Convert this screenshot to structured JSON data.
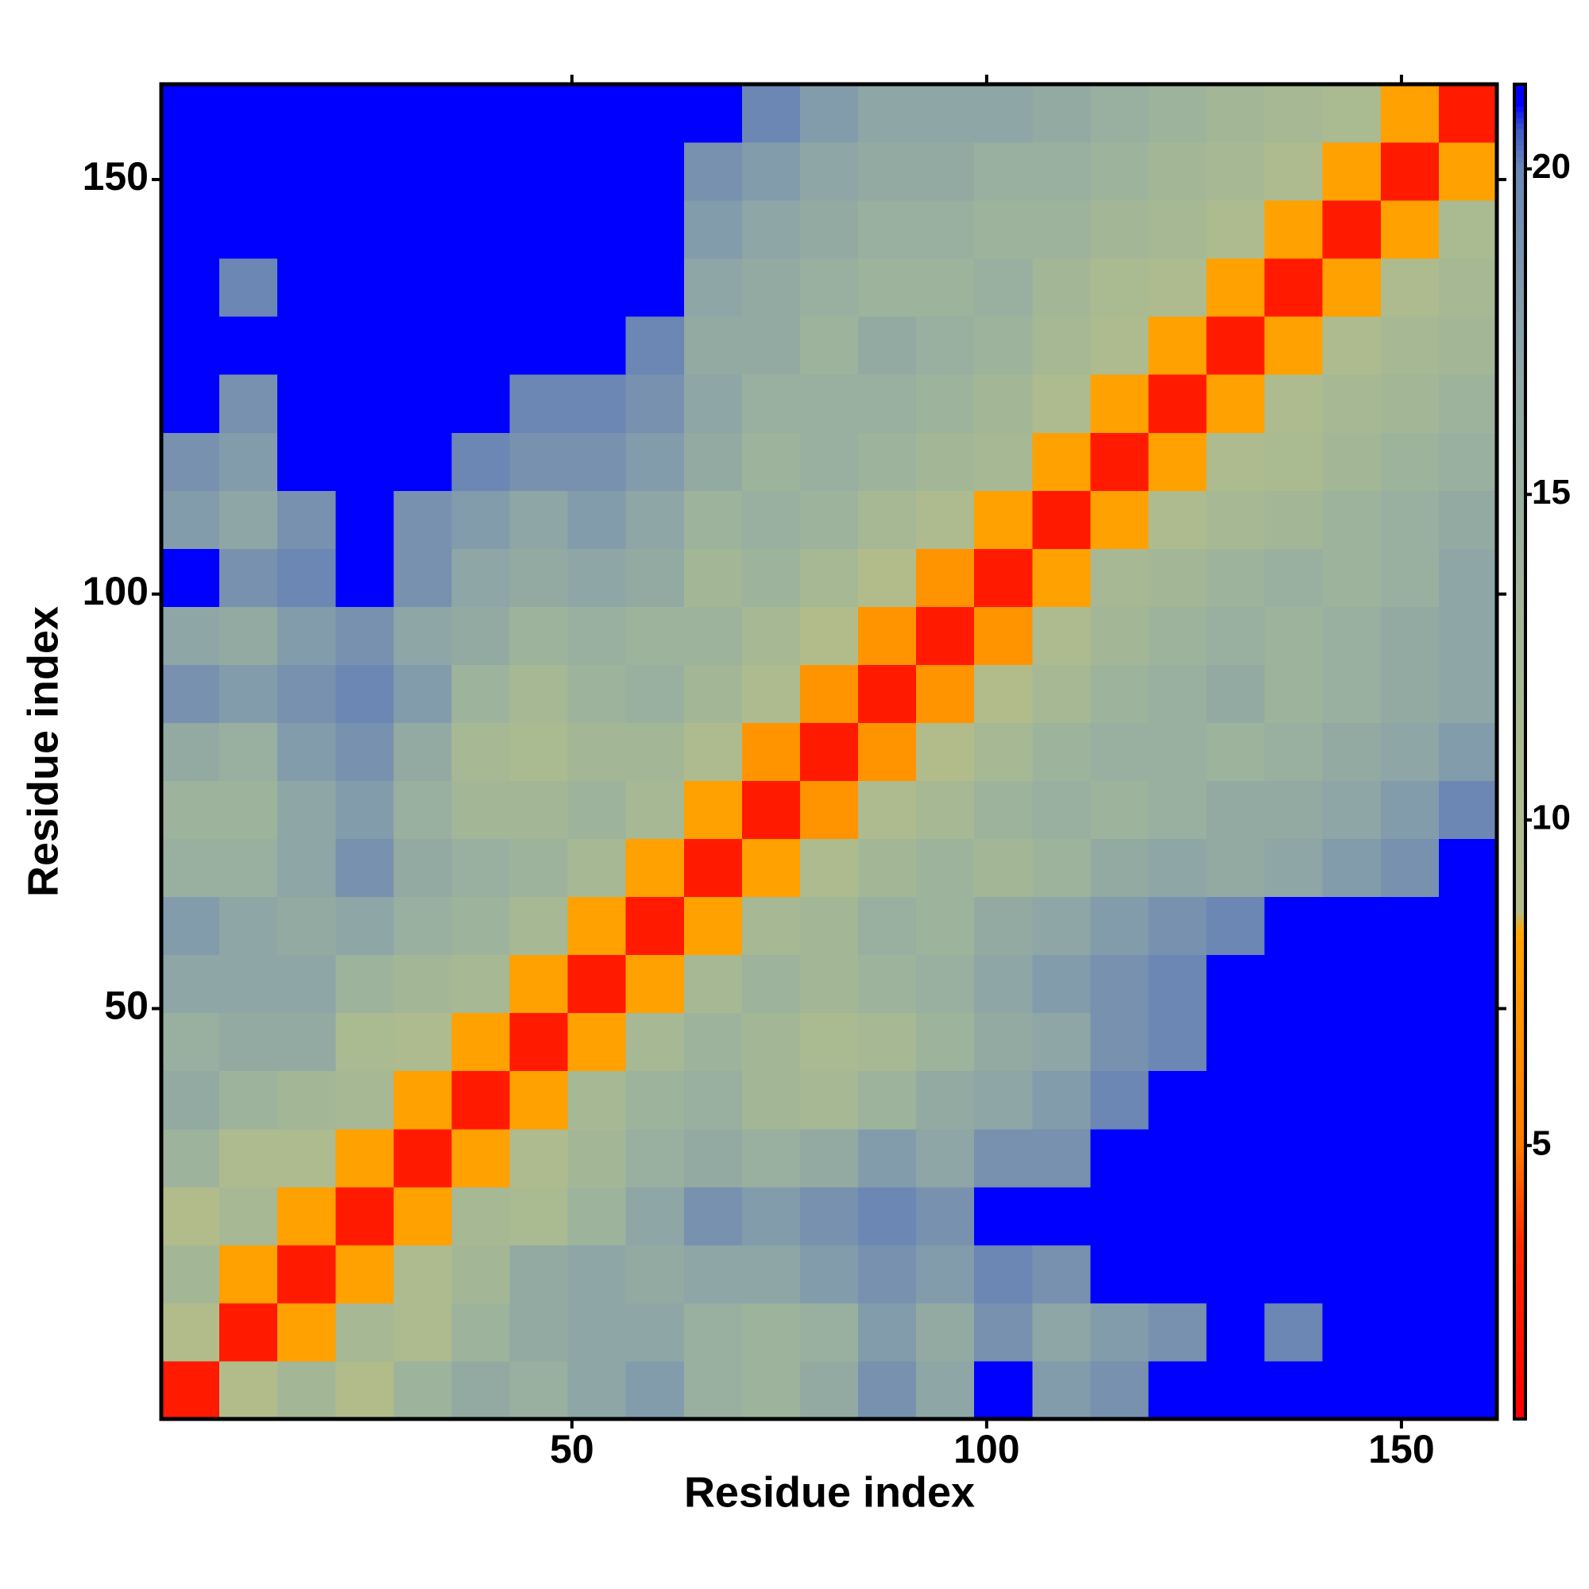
{
  "chart_data": {
    "type": "heatmap",
    "x_label": "Residue index",
    "y_label": "Residue index",
    "bins": [
      0.5,
      7.5,
      14.5,
      21.5,
      28.5,
      35.5,
      42.5,
      49.5,
      56.5,
      63.5,
      70.5,
      77.5,
      84.5,
      91.5,
      98.5,
      105.5,
      112.5,
      119.5,
      126.5,
      133.5,
      140.5,
      147.5,
      154.5,
      161.5
    ],
    "xlim": [
      0.5,
      161.5
    ],
    "ylim": [
      0.5,
      161.5
    ],
    "xticks": [
      50,
      100,
      150
    ],
    "yticks": [
      50,
      100,
      150
    ],
    "zlim": [
      0.8,
      21.3
    ],
    "zticks": [
      5,
      10,
      15,
      20
    ],
    "colorscale": [
      [
        0.8,
        "#ff0000"
      ],
      [
        3.5,
        "#ff2a00"
      ],
      [
        5,
        "#ff7a00"
      ],
      [
        8.3,
        "#ffa500"
      ],
      [
        8.6,
        "#b3bd8a"
      ],
      [
        13,
        "#a3b797"
      ],
      [
        17,
        "#8ea6a6"
      ],
      [
        20,
        "#6c87b4"
      ],
      [
        20.6,
        "#3d5bc8"
      ],
      [
        21,
        "#0000ff"
      ],
      [
        21.3,
        "#0000ff"
      ]
    ],
    "z": [
      [
        2.5,
        9,
        13,
        9,
        14,
        16,
        15,
        17,
        18,
        15,
        14,
        16,
        19,
        17,
        21,
        18,
        19,
        21,
        21,
        21,
        21,
        21,
        21
      ],
      [
        9,
        2.5,
        8,
        12,
        10,
        14,
        16,
        17,
        17,
        15,
        14,
        15,
        18,
        16,
        19,
        17,
        18,
        19,
        21,
        20,
        21,
        21,
        21
      ],
      [
        13,
        8,
        2.5,
        8,
        10,
        13,
        16,
        17,
        16,
        17,
        17,
        18,
        19,
        18,
        20,
        19,
        21,
        21,
        21,
        21,
        21,
        21,
        21
      ],
      [
        9,
        12,
        8,
        2.5,
        8,
        12,
        11,
        14,
        17,
        19,
        18,
        19,
        20,
        19,
        21,
        21,
        21,
        21,
        21,
        21,
        21,
        21,
        21
      ],
      [
        14,
        10,
        10,
        8,
        2.5,
        8,
        10,
        13,
        15,
        16,
        15,
        16,
        18,
        17,
        19,
        19,
        21,
        21,
        21,
        21,
        21,
        21,
        21
      ],
      [
        16,
        14,
        13,
        12,
        8,
        2.5,
        8,
        12,
        14,
        15,
        13,
        12,
        14,
        16,
        17,
        18,
        20,
        21,
        21,
        21,
        21,
        21,
        21
      ],
      [
        15,
        16,
        16,
        11,
        10,
        8,
        2.5,
        8,
        12,
        14,
        13,
        11,
        12,
        14,
        16,
        17,
        19,
        20,
        21,
        21,
        21,
        21,
        21
      ],
      [
        17,
        17,
        17,
        14,
        13,
        12,
        8,
        2.5,
        8,
        12,
        14,
        13,
        14,
        15,
        17,
        18,
        19,
        20,
        21,
        21,
        21,
        21,
        21
      ],
      [
        18,
        17,
        16,
        17,
        15,
        14,
        12,
        8,
        2.5,
        8,
        12,
        13,
        15,
        14,
        16,
        17,
        18,
        19,
        20,
        21,
        21,
        21,
        21
      ],
      [
        15,
        15,
        17,
        19,
        16,
        15,
        14,
        12,
        8,
        2.5,
        8,
        10,
        13,
        14,
        13,
        14,
        16,
        17,
        16,
        17,
        18,
        19,
        21
      ],
      [
        14,
        14,
        17,
        18,
        15,
        13,
        13,
        14,
        12,
        8,
        2.5,
        7,
        10,
        12,
        14,
        15,
        14,
        15,
        16,
        16,
        17,
        18,
        20
      ],
      [
        16,
        15,
        18,
        19,
        16,
        12,
        11,
        13,
        13,
        10,
        7,
        2.5,
        7,
        9,
        12,
        14,
        15,
        15,
        14,
        15,
        16,
        17,
        18
      ],
      [
        19,
        18,
        19,
        20,
        18,
        14,
        12,
        14,
        15,
        13,
        10,
        7,
        2.5,
        7,
        9,
        12,
        14,
        15,
        16,
        14,
        15,
        16,
        17
      ],
      [
        17,
        16,
        18,
        19,
        17,
        16,
        14,
        15,
        14,
        14,
        12,
        9,
        7,
        2.5,
        7,
        10,
        13,
        14,
        15,
        14,
        15,
        16,
        17
      ],
      [
        21,
        19,
        20,
        21,
        19,
        17,
        16,
        17,
        16,
        13,
        14,
        12,
        9,
        7,
        2.5,
        8,
        12,
        13,
        14,
        15,
        14,
        15,
        17
      ],
      [
        18,
        17,
        19,
        21,
        19,
        18,
        17,
        18,
        17,
        14,
        15,
        14,
        12,
        10,
        8,
        2.5,
        8,
        10,
        12,
        13,
        14,
        15,
        16
      ],
      [
        19,
        18,
        21,
        21,
        21,
        20,
        19,
        19,
        18,
        16,
        14,
        15,
        14,
        13,
        12,
        8,
        2.5,
        8,
        10,
        11,
        13,
        14,
        15
      ],
      [
        21,
        19,
        21,
        21,
        21,
        21,
        20,
        20,
        19,
        17,
        15,
        15,
        15,
        14,
        13,
        10,
        8,
        2.5,
        8,
        10,
        12,
        13,
        14
      ],
      [
        21,
        21,
        21,
        21,
        21,
        21,
        21,
        21,
        20,
        16,
        16,
        14,
        16,
        15,
        14,
        12,
        10,
        8,
        2.5,
        8,
        10,
        12,
        13
      ],
      [
        21,
        20,
        21,
        21,
        21,
        21,
        21,
        21,
        21,
        17,
        16,
        15,
        14,
        14,
        15,
        13,
        11,
        10,
        8,
        2.5,
        8,
        10,
        12
      ],
      [
        21,
        21,
        21,
        21,
        21,
        21,
        21,
        21,
        21,
        18,
        17,
        16,
        15,
        15,
        14,
        14,
        13,
        12,
        10,
        8,
        2.5,
        8,
        11
      ],
      [
        21,
        21,
        21,
        21,
        21,
        21,
        21,
        21,
        21,
        19,
        18,
        17,
        16,
        16,
        15,
        15,
        14,
        13,
        12,
        10,
        8,
        2.5,
        8
      ],
      [
        21,
        21,
        21,
        21,
        21,
        21,
        21,
        21,
        21,
        21,
        20,
        18,
        17,
        17,
        17,
        16,
        15,
        14,
        13,
        12,
        11,
        8,
        2.5
      ]
    ]
  }
}
